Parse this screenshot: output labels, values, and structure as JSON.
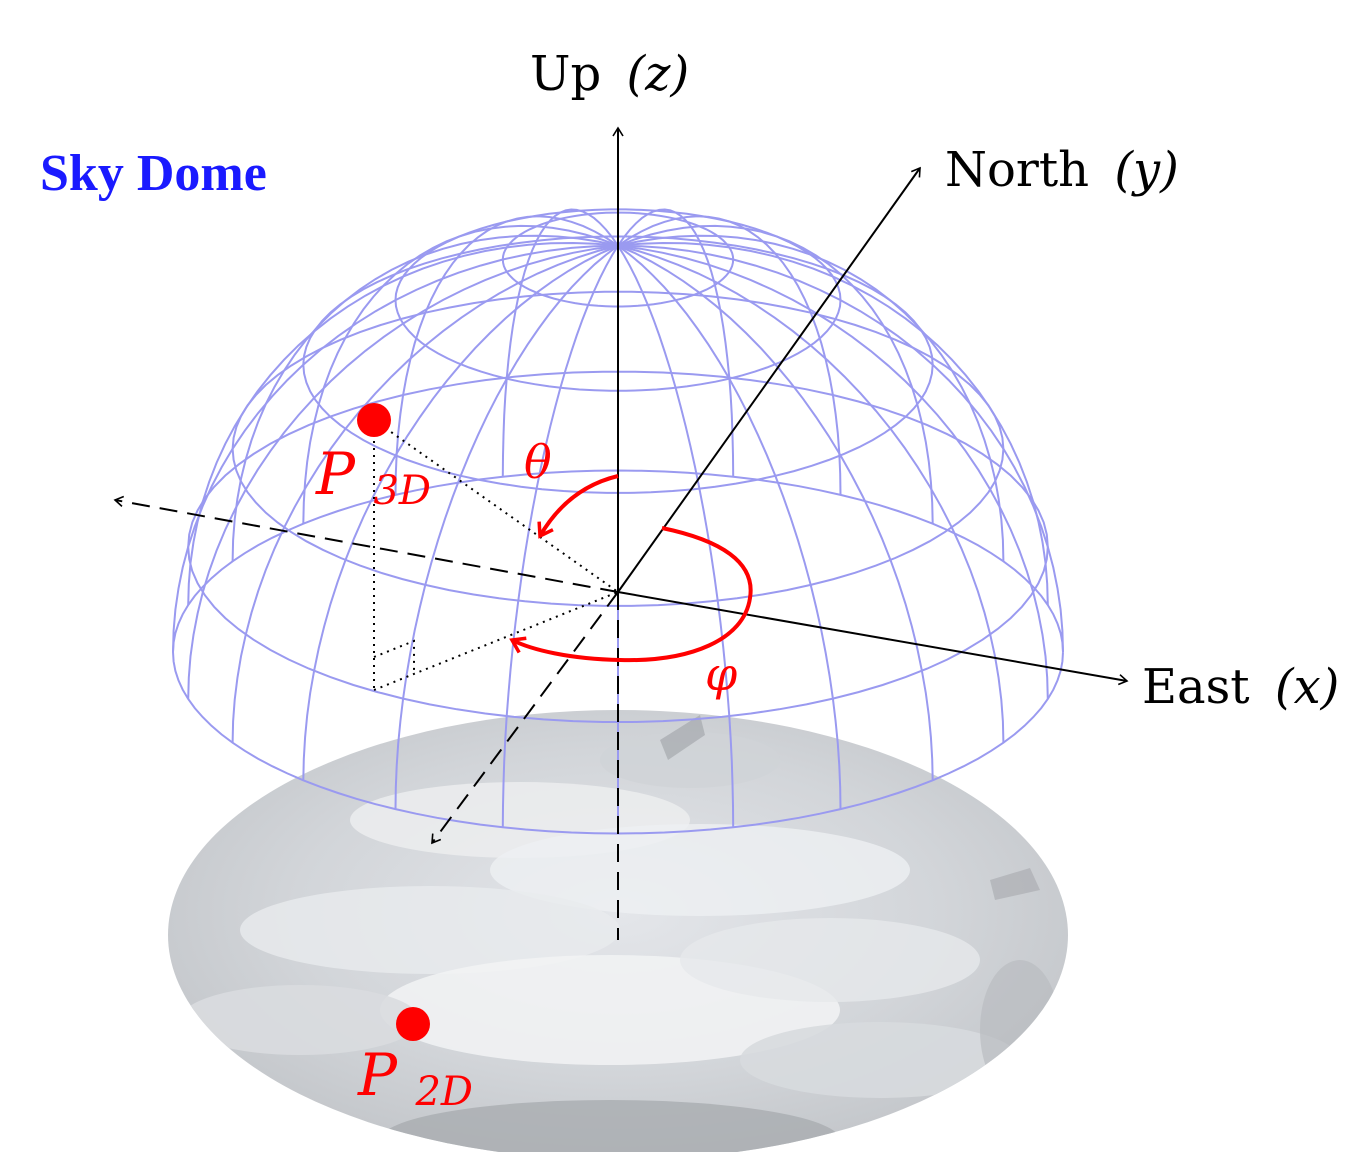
{
  "title": "Sky Dome",
  "axes": {
    "up": {
      "label": "Up",
      "symbol": "(z)"
    },
    "north": {
      "label": "North",
      "symbol": "(y)"
    },
    "east": {
      "label": "East",
      "symbol": "(x)"
    }
  },
  "angles": {
    "zenith": "θ",
    "azimuth": "φ"
  },
  "points": {
    "p3d": {
      "letter": "P",
      "subscript": "3D"
    },
    "p2d": {
      "letter": "P",
      "subscript": "2D"
    }
  },
  "colors": {
    "title": "#1a1aff",
    "dome": "#9a9af0",
    "accent": "#ff0000",
    "ground_image": "#d4d6da",
    "axis": "#000000"
  }
}
